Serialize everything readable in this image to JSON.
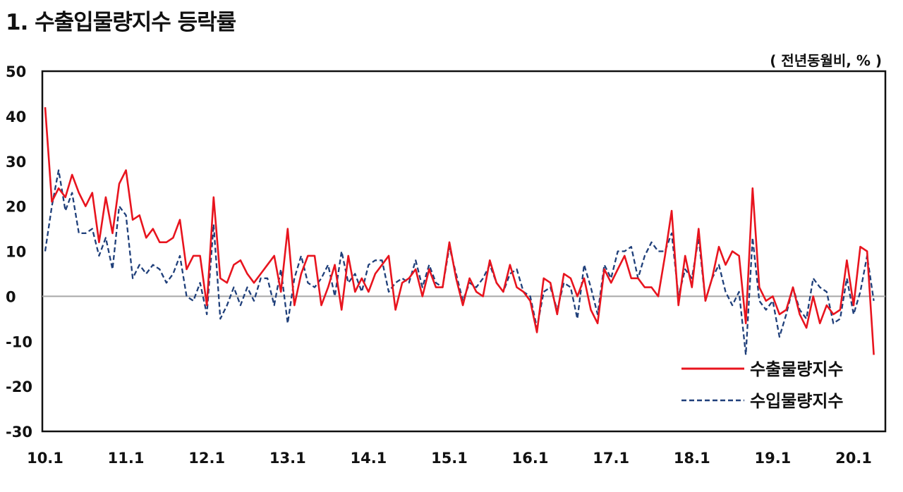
{
  "title": "1. 수출입물량지수 등락률",
  "unit_label": "( 전년동월비, % )",
  "chart_data": {
    "type": "line",
    "title": "1. 수출입물량지수 등락률",
    "ylabel": "",
    "xlabel": "",
    "ylim": [
      -30,
      50
    ],
    "yticks": [
      50,
      40,
      30,
      20,
      10,
      0,
      -10,
      -20,
      -30
    ],
    "x_ticks": [
      "10.1",
      "11.1",
      "12.1",
      "13.1",
      "14.1",
      "15.1",
      "16.1",
      "17.1",
      "18.1",
      "19.1",
      "20.1"
    ],
    "x_start": "2010.1",
    "x_end": "2020.4",
    "grid": false,
    "zero_line": true,
    "legend_position": "bottom-right",
    "series": [
      {
        "name": "수출물량지수",
        "color": "#e8141e",
        "dash": "solid",
        "values": [
          42,
          21,
          24,
          22,
          27,
          23,
          20,
          23,
          12,
          22,
          14,
          25,
          28,
          17,
          18,
          13,
          15,
          12,
          12,
          13,
          17,
          6,
          9,
          9,
          -2,
          22,
          4,
          3,
          7,
          8,
          5,
          3,
          5,
          7,
          9,
          1,
          15,
          -2,
          5,
          9,
          9,
          -2,
          2,
          7,
          -3,
          9,
          1,
          4,
          1,
          5,
          7,
          9,
          -3,
          3,
          4,
          6,
          0,
          6,
          2,
          2,
          12,
          4,
          -2,
          4,
          1,
          0,
          8,
          3,
          1,
          7,
          2,
          1,
          -1,
          -8,
          4,
          3,
          -4,
          5,
          4,
          0,
          4,
          -3,
          -6,
          6,
          3,
          6,
          9,
          4,
          4,
          2,
          2,
          0,
          9,
          19,
          -2,
          9,
          2,
          15,
          -1,
          4,
          11,
          7,
          10,
          9,
          -6,
          24,
          2,
          -1,
          0,
          -4,
          -3,
          2,
          -4,
          -7,
          0,
          -6,
          -2,
          -4,
          -3,
          8,
          -2,
          11,
          10,
          -13
        ]
      },
      {
        "name": "수입물량지수",
        "color": "#1f3f7a",
        "dash": "dashed",
        "values": [
          10,
          20,
          28,
          19,
          23,
          14,
          14,
          15,
          9,
          13,
          6,
          20,
          18,
          4,
          7,
          5,
          7,
          6,
          3,
          5,
          9,
          0,
          -1,
          3,
          -4,
          16,
          -5,
          -2,
          2,
          -2,
          2,
          -1,
          4,
          4,
          -2,
          6,
          -6,
          4,
          9,
          3,
          2,
          4,
          7,
          0,
          10,
          3,
          5,
          1,
          7,
          8,
          8,
          1,
          3,
          4,
          3,
          8,
          2,
          7,
          3,
          2,
          11,
          5,
          -1,
          3,
          2,
          4,
          7,
          3,
          1,
          5,
          6,
          1,
          0,
          -7,
          1,
          2,
          -3,
          3,
          2,
          -5,
          7,
          2,
          -4,
          7,
          4,
          10,
          10,
          11,
          4,
          9,
          12,
          10,
          10,
          14,
          0,
          6,
          4,
          13,
          -1,
          4,
          7,
          1,
          -2,
          1,
          -13,
          13,
          -1,
          -3,
          -1,
          -9,
          -4,
          2,
          -3,
          -5,
          4,
          2,
          1,
          -6,
          -5,
          4,
          -4,
          1,
          9,
          -1
        ]
      }
    ]
  }
}
